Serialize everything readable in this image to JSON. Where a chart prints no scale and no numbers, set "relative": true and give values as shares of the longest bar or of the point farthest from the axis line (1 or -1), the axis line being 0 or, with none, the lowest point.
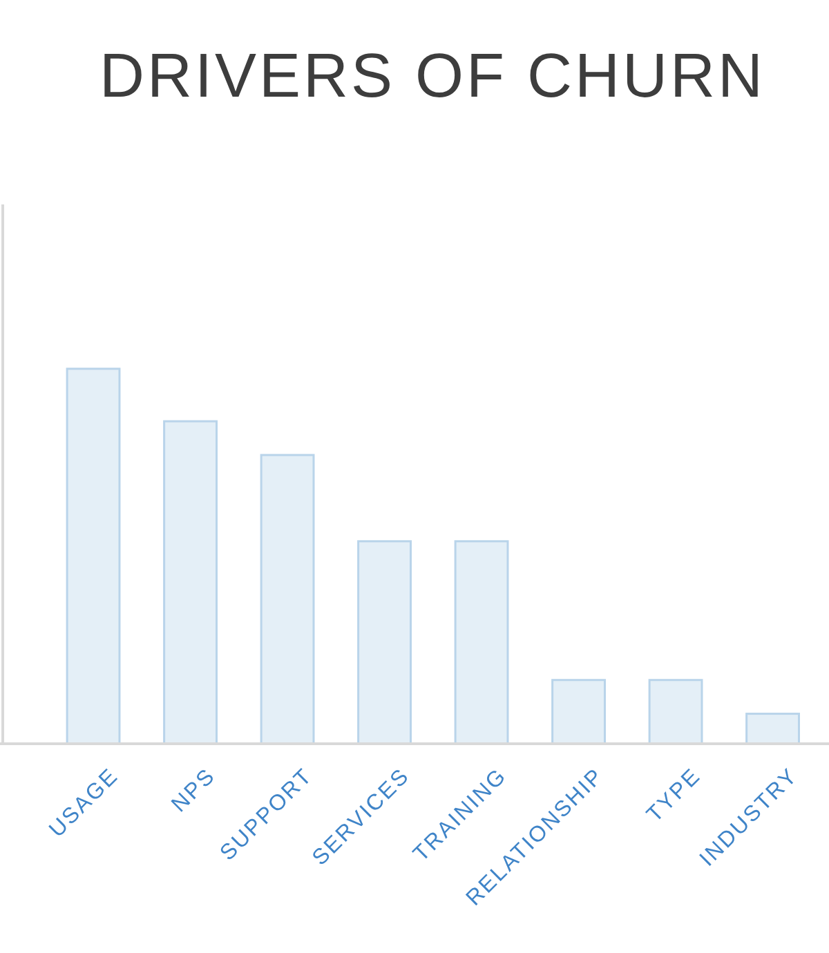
{
  "chart_data": {
    "type": "bar",
    "title": "DRIVERS OF CHURN",
    "categories": [
      "USAGE",
      "NPS",
      "SUPPORT",
      "SERVICES",
      "TRAINING",
      "RELATIONSHIP",
      "TYPE",
      "INDUSTRY"
    ],
    "values": [
      1,
      0.86,
      0.77,
      0.54,
      0.54,
      0.17,
      0.17,
      0.08
    ],
    "color": "#e4eff7",
    "relative": true
  }
}
